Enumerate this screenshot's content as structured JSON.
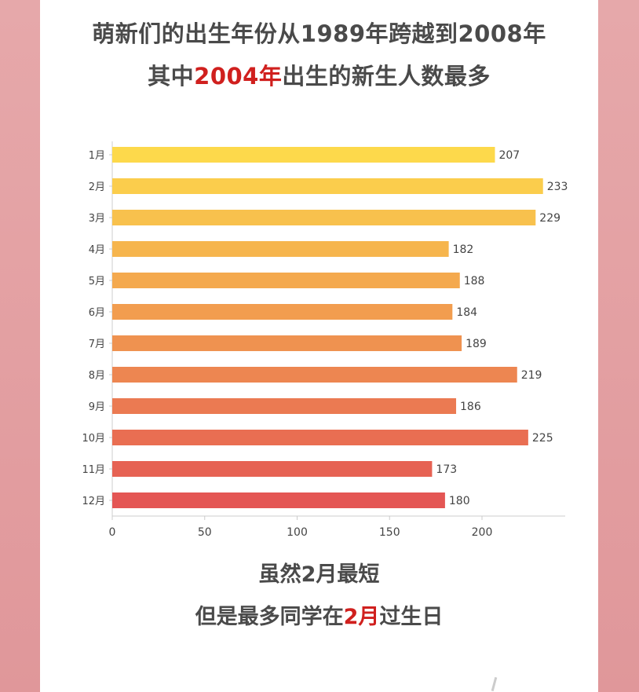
{
  "header": {
    "line1": "萌新们的出生年份从1989年跨越到2008年",
    "line2_prefix": "其中",
    "line2_highlight": "2004年",
    "line2_suffix": "出生的新生人数最多"
  },
  "chart_data": {
    "type": "bar",
    "orientation": "horizontal",
    "categories": [
      "1月",
      "2月",
      "3月",
      "4月",
      "5月",
      "6月",
      "7月",
      "8月",
      "9月",
      "10月",
      "11月",
      "12月"
    ],
    "values": [
      207,
      233,
      229,
      182,
      188,
      184,
      189,
      219,
      186,
      225,
      173,
      180
    ],
    "xticks": [
      0,
      50,
      100,
      150,
      200
    ],
    "xlim": [
      0,
      245
    ],
    "color_start": "#fdd94b",
    "color_end": "#e45654",
    "grid": false
  },
  "footer": {
    "line1": "虽然2月最短",
    "line2_prefix": "但是最多同学在",
    "line2_highlight": "2月",
    "line2_suffix": "过生日"
  }
}
